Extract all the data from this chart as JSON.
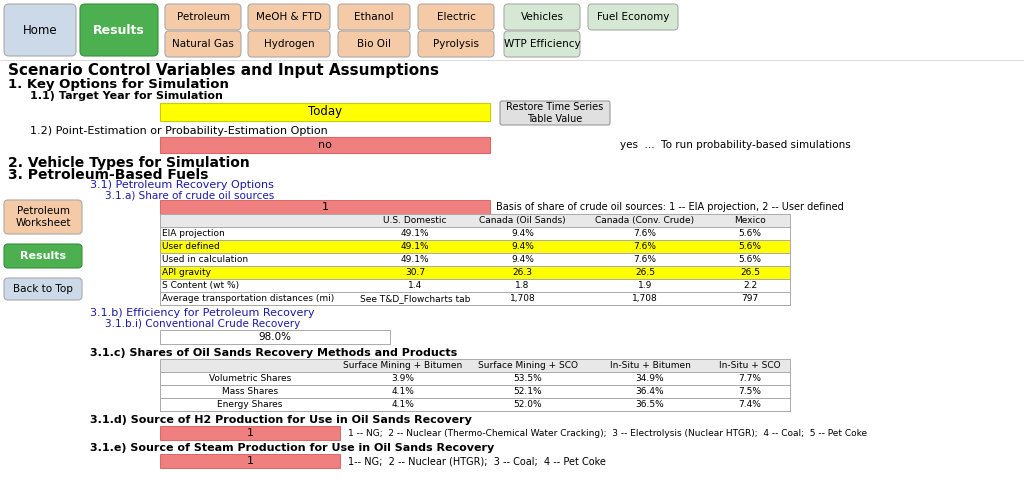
{
  "bg_color": "#ffffff",
  "sections": {
    "main_title": "Scenario Control Variables and Input Assumptions",
    "s1": "1. Key Options for Simulation",
    "s1_1": "1.1) Target Year for Simulation",
    "today_label": "Today",
    "today_color": "#ffff00",
    "restore_btn": "Restore Time Series\nTable Value",
    "s1_2": "1.2) Point-Estimation or Probability-Estimation Option",
    "no_label": "no",
    "no_color": "#f08080",
    "yes_text": "yes  ...  To run probability-based simulations",
    "s2": "2. Vehicle Types for Simulation",
    "s3": "3. Petroleum-Based Fuels",
    "s3_1": "3.1) Petroleum Recovery Options",
    "s3_1a": "3.1.a) Share of crude oil sources",
    "crude_val": "1",
    "crude_color": "#f08080",
    "crude_basis": "Basis of share of crude oil sources: 1 -- EIA projection, 2 -- User defined",
    "table_headers": [
      "",
      "U.S. Domestic",
      "Canada (Oil Sands)",
      "Canada (Conv. Crude)",
      "Mexico"
    ],
    "table_rows": [
      [
        "EIA projection",
        "49.1%",
        "9.4%",
        "7.6%",
        "5.6%"
      ],
      [
        "User defined",
        "49.1%",
        "9.4%",
        "7.6%",
        "5.6%"
      ],
      [
        "Used in calculation",
        "49.1%",
        "9.4%",
        "7.6%",
        "5.6%"
      ],
      [
        "API gravity",
        "30.7",
        "26.3",
        "26.5",
        "26.5"
      ],
      [
        "S Content (wt %)",
        "1.4",
        "1.8",
        "1.9",
        "2.2"
      ],
      [
        "Average transportation distances (mi)",
        "See T&D_Flowcharts tab",
        "1,708",
        "1,708",
        "797"
      ]
    ],
    "row_colors": [
      "#ffffff",
      "#ffff00",
      "#ffffff",
      "#ffff00",
      "#ffffff",
      "#ffffff"
    ],
    "s3_1b": "3.1.b) Efficiency for Petroleum Recovery",
    "s3_1bi": "3.1.b.i) Conventional Crude Recovery",
    "conv_crude_val": "98.0%",
    "s3_1c": "3.1.c) Shares of Oil Sands Recovery Methods and Products",
    "sands_headers": [
      "",
      "Surface Mining + Bitumen",
      "Surface Mining + SCO",
      "In-Situ + Bitumen",
      "In-Situ + SCO"
    ],
    "sands_rows": [
      [
        "Volumetric Shares",
        "3.9%",
        "53.5%",
        "34.9%",
        "7.7%"
      ],
      [
        "Mass Shares",
        "4.1%",
        "52.1%",
        "36.4%",
        "7.5%"
      ],
      [
        "Energy Shares",
        "4.1%",
        "52.0%",
        "36.5%",
        "7.4%"
      ]
    ],
    "s3_1d": "3.1.d) Source of H2 Production for Use in Oil Sands Recovery",
    "h2_val": "1",
    "h2_color": "#f08080",
    "h2_note": "1 -- NG;  2 -- Nuclear (Thermo-Chemical Water Cracking);  3 -- Electrolysis (Nuclear HTGR);  4 -- Coal;  5 -- Pet Coke",
    "s3_1e": "3.1.e) Source of Steam Production for Use in Oil Sands Recovery",
    "steam_val": "1",
    "steam_color": "#f08080",
    "steam_note": "1-- NG;  2 -- Nuclear (HTGR);  3 -- Coal;  4 -- Pet Coke"
  }
}
